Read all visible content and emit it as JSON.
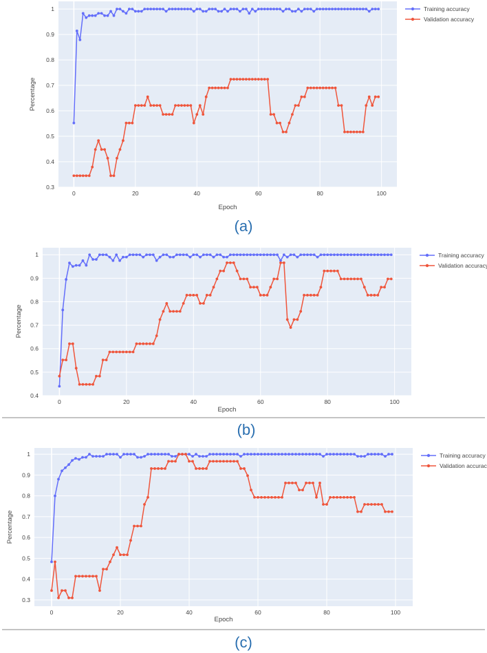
{
  "colors": {
    "plot_bg": "#e5ecf6",
    "grid": "#ffffff",
    "training": "#636efa",
    "validation": "#ef553b",
    "caption": "#2a6fb0"
  },
  "chart_data": [
    {
      "type": "line",
      "caption": "(a)",
      "xlabel": "Epoch",
      "ylabel": "Percentage",
      "xlim": [
        -5,
        105
      ],
      "ylim": [
        0.3,
        1.03
      ],
      "xticks": [
        0,
        20,
        40,
        60,
        80,
        100
      ],
      "yticks": [
        0.3,
        0.4,
        0.5,
        0.6,
        0.7,
        0.8,
        0.9,
        1
      ],
      "ytick_labels": [
        "0.3",
        "0.4",
        "0.5",
        "0.6",
        "0.7",
        "0.8",
        "0.9",
        "1"
      ],
      "legend_position": "top-right outside",
      "x": [
        0,
        1,
        2,
        3,
        4,
        5,
        6,
        7,
        8,
        9,
        10,
        11,
        12,
        13,
        14,
        15,
        16,
        17,
        18,
        19,
        20,
        21,
        22,
        23,
        24,
        25,
        26,
        27,
        28,
        29,
        30,
        31,
        32,
        33,
        34,
        35,
        36,
        37,
        38,
        39,
        40,
        41,
        42,
        43,
        44,
        45,
        46,
        47,
        48,
        49,
        50,
        51,
        52,
        53,
        54,
        55,
        56,
        57,
        58,
        59,
        60,
        61,
        62,
        63,
        64,
        65,
        66,
        67,
        68,
        69,
        70,
        71,
        72,
        73,
        74,
        75,
        76,
        77,
        78,
        79,
        80,
        81,
        82,
        83,
        84,
        85,
        86,
        87,
        88,
        89,
        90,
        91,
        92,
        93,
        94,
        95,
        96,
        97,
        98,
        99
      ],
      "series": [
        {
          "name": "Training accuracy",
          "values": [
            0.552,
            0.914,
            0.879,
            0.983,
            0.966,
            0.974,
            0.974,
            0.974,
            0.983,
            0.983,
            0.974,
            0.974,
            0.991,
            0.974,
            1,
            1,
            0.991,
            0.983,
            1,
            1,
            0.991,
            0.991,
            0.991,
            1,
            1,
            1,
            1,
            1,
            1,
            1,
            0.991,
            1,
            1,
            1,
            1,
            1,
            1,
            1,
            1,
            0.991,
            1,
            1,
            0.991,
            0.991,
            1,
            1,
            1,
            0.991,
            0.991,
            1,
            0.991,
            1,
            1,
            1,
            0.991,
            1,
            1,
            0.983,
            1,
            0.991,
            1,
            1,
            1,
            1,
            1,
            1,
            1,
            1,
            0.991,
            1,
            1,
            0.991,
            0.991,
            1,
            0.991,
            1,
            1,
            1,
            0.991,
            1,
            1,
            1,
            1,
            1,
            1,
            1,
            1,
            1,
            1,
            1,
            1,
            1,
            1,
            1,
            1,
            1,
            0.991,
            1,
            1,
            1
          ]
        },
        {
          "name": "Validation accuracy",
          "values": [
            0.345,
            0.345,
            0.345,
            0.345,
            0.345,
            0.345,
            0.379,
            0.448,
            0.483,
            0.448,
            0.448,
            0.414,
            0.345,
            0.345,
            0.414,
            0.448,
            0.483,
            0.552,
            0.552,
            0.552,
            0.621,
            0.621,
            0.621,
            0.621,
            0.655,
            0.621,
            0.621,
            0.621,
            0.621,
            0.586,
            0.586,
            0.586,
            0.586,
            0.621,
            0.621,
            0.621,
            0.621,
            0.621,
            0.621,
            0.552,
            0.586,
            0.621,
            0.586,
            0.655,
            0.69,
            0.69,
            0.69,
            0.69,
            0.69,
            0.69,
            0.69,
            0.724,
            0.724,
            0.724,
            0.724,
            0.724,
            0.724,
            0.724,
            0.724,
            0.724,
            0.724,
            0.724,
            0.724,
            0.724,
            0.586,
            0.586,
            0.552,
            0.552,
            0.517,
            0.517,
            0.552,
            0.586,
            0.621,
            0.621,
            0.655,
            0.655,
            0.69,
            0.69,
            0.69,
            0.69,
            0.69,
            0.69,
            0.69,
            0.69,
            0.69,
            0.69,
            0.621,
            0.621,
            0.517,
            0.517,
            0.517,
            0.517,
            0.517,
            0.517,
            0.517,
            0.621,
            0.655,
            0.621,
            0.655,
            0.655
          ]
        }
      ]
    },
    {
      "type": "line",
      "caption": "(b)",
      "xlabel": "Epoch",
      "ylabel": "Percentage",
      "xlim": [
        -5,
        105
      ],
      "ylim": [
        0.4,
        1.03
      ],
      "xticks": [
        0,
        20,
        40,
        60,
        80,
        100
      ],
      "yticks": [
        0.4,
        0.5,
        0.6,
        0.7,
        0.8,
        0.9,
        1
      ],
      "ytick_labels": [
        "0.4",
        "0.5",
        "0.6",
        "0.7",
        "0.8",
        "0.9",
        "1"
      ],
      "legend_position": "top-right outside",
      "x": [
        0,
        1,
        2,
        3,
        4,
        5,
        6,
        7,
        8,
        9,
        10,
        11,
        12,
        13,
        14,
        15,
        16,
        17,
        18,
        19,
        20,
        21,
        22,
        23,
        24,
        25,
        26,
        27,
        28,
        29,
        30,
        31,
        32,
        33,
        34,
        35,
        36,
        37,
        38,
        39,
        40,
        41,
        42,
        43,
        44,
        45,
        46,
        47,
        48,
        49,
        50,
        51,
        52,
        53,
        54,
        55,
        56,
        57,
        58,
        59,
        60,
        61,
        62,
        63,
        64,
        65,
        66,
        67,
        68,
        69,
        70,
        71,
        72,
        73,
        74,
        75,
        76,
        77,
        78,
        79,
        80,
        81,
        82,
        83,
        84,
        85,
        86,
        87,
        88,
        89,
        90,
        91,
        92,
        93,
        94,
        95,
        96,
        97,
        98,
        99
      ],
      "series": [
        {
          "name": "Training accuracy",
          "values": [
            0.44,
            0.765,
            0.895,
            0.965,
            0.95,
            0.955,
            0.955,
            0.975,
            0.955,
            1,
            0.98,
            0.98,
            1,
            1,
            1,
            0.99,
            0.975,
            1,
            0.975,
            0.99,
            0.99,
            1,
            1,
            1,
            1,
            0.99,
            1,
            1,
            1,
            0.975,
            0.99,
            1,
            1,
            0.99,
            0.99,
            1,
            1,
            1,
            1,
            0.99,
            1,
            1,
            0.99,
            1,
            1,
            1,
            0.99,
            1,
            1,
            0.99,
            0.99,
            1,
            1,
            1,
            1,
            1,
            1,
            1,
            1,
            1,
            1,
            1,
            1,
            1,
            1,
            1,
            0.975,
            1,
            0.99,
            1,
            1,
            0.99,
            1,
            1,
            1,
            1,
            1,
            0.99,
            1,
            1,
            1,
            1,
            1,
            1,
            1,
            1,
            1,
            1,
            1,
            1,
            1,
            1,
            1,
            1,
            1,
            1,
            1,
            1,
            1,
            1
          ]
        },
        {
          "name": "Validation accuracy",
          "values": [
            0.483,
            0.552,
            0.552,
            0.621,
            0.621,
            0.517,
            0.448,
            0.448,
            0.448,
            0.448,
            0.448,
            0.483,
            0.483,
            0.552,
            0.552,
            0.586,
            0.586,
            0.586,
            0.586,
            0.586,
            0.586,
            0.586,
            0.586,
            0.621,
            0.621,
            0.621,
            0.621,
            0.621,
            0.621,
            0.655,
            0.724,
            0.759,
            0.793,
            0.759,
            0.759,
            0.759,
            0.759,
            0.793,
            0.828,
            0.828,
            0.828,
            0.828,
            0.793,
            0.793,
            0.828,
            0.828,
            0.862,
            0.897,
            0.931,
            0.931,
            0.966,
            0.966,
            0.966,
            0.931,
            0.897,
            0.897,
            0.897,
            0.862,
            0.862,
            0.862,
            0.828,
            0.828,
            0.828,
            0.862,
            0.897,
            0.897,
            0.966,
            0.966,
            0.724,
            0.69,
            0.724,
            0.724,
            0.759,
            0.828,
            0.828,
            0.828,
            0.828,
            0.828,
            0.862,
            0.931,
            0.931,
            0.931,
            0.931,
            0.931,
            0.897,
            0.897,
            0.897,
            0.897,
            0.897,
            0.897,
            0.897,
            0.862,
            0.828,
            0.828,
            0.828,
            0.828,
            0.862,
            0.862,
            0.897,
            0.897
          ]
        }
      ]
    },
    {
      "type": "line",
      "caption": "(c)",
      "xlabel": "Epoch",
      "ylabel": "Percentage",
      "xlim": [
        -5,
        105
      ],
      "ylim": [
        0.27,
        1.03
      ],
      "xticks": [
        0,
        20,
        40,
        60,
        80,
        100
      ],
      "yticks": [
        0.3,
        0.4,
        0.5,
        0.6,
        0.7,
        0.8,
        0.9,
        1
      ],
      "ytick_labels": [
        "0.3",
        "0.4",
        "0.5",
        "0.6",
        "0.7",
        "0.8",
        "0.9",
        "1"
      ],
      "legend_position": "top-right outside",
      "x": [
        0,
        1,
        2,
        3,
        4,
        5,
        6,
        7,
        8,
        9,
        10,
        11,
        12,
        13,
        14,
        15,
        16,
        17,
        18,
        19,
        20,
        21,
        22,
        23,
        24,
        25,
        26,
        27,
        28,
        29,
        30,
        31,
        32,
        33,
        34,
        35,
        36,
        37,
        38,
        39,
        40,
        41,
        42,
        43,
        44,
        45,
        46,
        47,
        48,
        49,
        50,
        51,
        52,
        53,
        54,
        55,
        56,
        57,
        58,
        59,
        60,
        61,
        62,
        63,
        64,
        65,
        66,
        67,
        68,
        69,
        70,
        71,
        72,
        73,
        74,
        75,
        76,
        77,
        78,
        79,
        80,
        81,
        82,
        83,
        84,
        85,
        86,
        87,
        88,
        89,
        90,
        91,
        92,
        93,
        94,
        95,
        96,
        97,
        98,
        99
      ],
      "series": [
        {
          "name": "Training accuracy",
          "values": [
            0.483,
            0.8,
            0.88,
            0.92,
            0.935,
            0.95,
            0.97,
            0.98,
            0.975,
            0.985,
            0.985,
            1,
            0.99,
            0.99,
            0.99,
            0.99,
            1,
            1,
            1,
            1,
            0.985,
            1,
            1,
            1,
            1,
            0.985,
            0.985,
            0.99,
            1,
            1,
            1,
            1,
            1,
            1,
            1,
            0.99,
            0.99,
            1,
            1,
            1,
            1,
            0.99,
            1,
            0.99,
            0.99,
            0.99,
            1,
            1,
            1,
            1,
            1,
            1,
            1,
            1,
            1,
            0.99,
            1,
            1,
            1,
            1,
            1,
            1,
            1,
            1,
            1,
            1,
            1,
            1,
            1,
            1,
            1,
            1,
            1,
            1,
            1,
            1,
            1,
            1,
            1,
            0.99,
            1,
            1,
            1,
            1,
            1,
            1,
            1,
            1,
            1,
            0.99,
            0.99,
            0.99,
            1,
            1,
            1,
            1,
            1,
            0.99,
            1,
            1
          ]
        },
        {
          "name": "Validation accuracy",
          "values": [
            0.345,
            0.483,
            0.31,
            0.345,
            0.345,
            0.31,
            0.31,
            0.414,
            0.414,
            0.414,
            0.414,
            0.414,
            0.414,
            0.414,
            0.345,
            0.448,
            0.448,
            0.483,
            0.517,
            0.552,
            0.517,
            0.517,
            0.517,
            0.586,
            0.655,
            0.655,
            0.655,
            0.759,
            0.793,
            0.931,
            0.931,
            0.931,
            0.931,
            0.931,
            0.966,
            0.966,
            0.966,
            1,
            1,
            1,
            0.966,
            0.966,
            0.931,
            0.931,
            0.931,
            0.931,
            0.966,
            0.966,
            0.966,
            0.966,
            0.966,
            0.966,
            0.966,
            0.966,
            0.966,
            0.931,
            0.931,
            0.897,
            0.828,
            0.793,
            0.793,
            0.793,
            0.793,
            0.793,
            0.793,
            0.793,
            0.793,
            0.793,
            0.862,
            0.862,
            0.862,
            0.862,
            0.828,
            0.828,
            0.862,
            0.862,
            0.862,
            0.793,
            0.862,
            0.759,
            0.759,
            0.793,
            0.793,
            0.793,
            0.793,
            0.793,
            0.793,
            0.793,
            0.793,
            0.724,
            0.724,
            0.759,
            0.759,
            0.759,
            0.759,
            0.759,
            0.759,
            0.724,
            0.724,
            0.724
          ]
        }
      ]
    }
  ]
}
